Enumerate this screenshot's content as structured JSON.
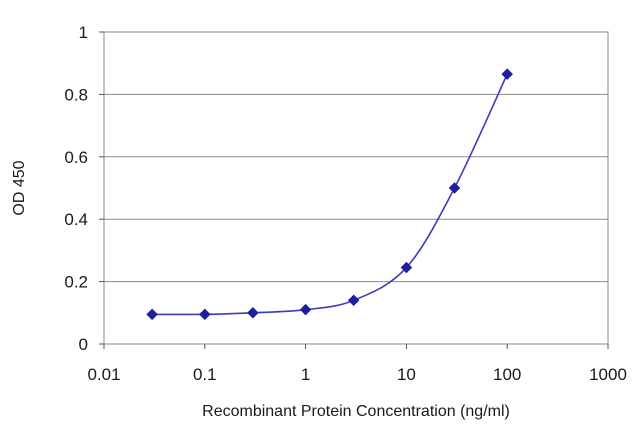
{
  "chart_data": {
    "type": "line",
    "title": "",
    "xlabel": "Recombinant Protein Concentration (ng/ml)",
    "ylabel": "OD 450",
    "x_scale": "log",
    "xlim": [
      0.01,
      1000
    ],
    "ylim": [
      0,
      1
    ],
    "x_ticks": [
      "0.01",
      "0.1",
      "1",
      "10",
      "100",
      "1000"
    ],
    "y_ticks": [
      "0",
      "0.2",
      "0.4",
      "0.6",
      "0.8",
      "1"
    ],
    "grid": "horizontal",
    "legend": "none",
    "series": [
      {
        "color": "#1f1f9c",
        "marker": "diamond",
        "points": [
          {
            "x": 0.03,
            "y": 0.095
          },
          {
            "x": 0.1,
            "y": 0.095
          },
          {
            "x": 0.3,
            "y": 0.1
          },
          {
            "x": 1,
            "y": 0.11
          },
          {
            "x": 3,
            "y": 0.14
          },
          {
            "x": 10,
            "y": 0.245
          },
          {
            "x": 30,
            "y": 0.5
          },
          {
            "x": 100,
            "y": 0.865
          }
        ]
      }
    ]
  }
}
